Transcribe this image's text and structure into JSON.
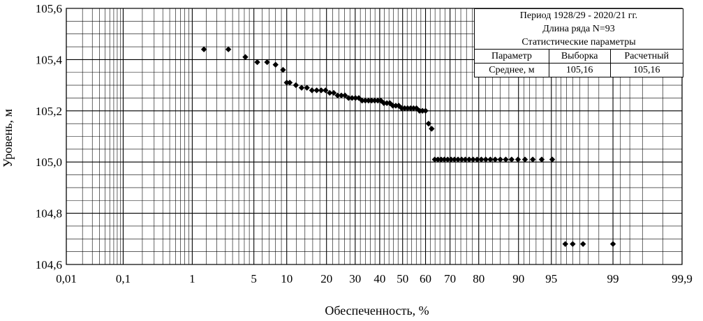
{
  "chart_data": {
    "type": "scatter",
    "title": "",
    "xlabel": "Обеспеченность, %",
    "ylabel": "Уровень, м",
    "x_scale": "probability",
    "ylim": [
      104.6,
      105.6
    ],
    "grid": true,
    "x_ticks": [
      {
        "value": 0.01,
        "label": "0,01"
      },
      {
        "value": 0.1,
        "label": "0,1"
      },
      {
        "value": 1,
        "label": "1"
      },
      {
        "value": 5,
        "label": "5"
      },
      {
        "value": 10,
        "label": "10"
      },
      {
        "value": 20,
        "label": "20"
      },
      {
        "value": 30,
        "label": "30"
      },
      {
        "value": 40,
        "label": "40"
      },
      {
        "value": 50,
        "label": "50"
      },
      {
        "value": 60,
        "label": "60"
      },
      {
        "value": 70,
        "label": "70"
      },
      {
        "value": 80,
        "label": "80"
      },
      {
        "value": 90,
        "label": "90"
      },
      {
        "value": 95,
        "label": "95"
      },
      {
        "value": 99,
        "label": "99"
      },
      {
        "value": 99.9,
        "label": "99,9"
      }
    ],
    "y_ticks": [
      {
        "value": 104.6,
        "label": "104,6"
      },
      {
        "value": 104.8,
        "label": "104,8"
      },
      {
        "value": 105.0,
        "label": "105,0"
      },
      {
        "value": 105.2,
        "label": "105,2"
      },
      {
        "value": 105.4,
        "label": "105,4"
      },
      {
        "value": 105.6,
        "label": "105,6"
      }
    ],
    "x": [
      1.4,
      2.7,
      4.1,
      5.4,
      6.7,
      8.0,
      9.3,
      10.0,
      10.6,
      11.9,
      13.2,
      14.5,
      15.8,
      17.1,
      18.4,
      19.7,
      21.0,
      22.3,
      23.6,
      24.9,
      26.2,
      27.5,
      28.8,
      30.1,
      31.4,
      32.7,
      34.0,
      35.3,
      36.6,
      37.9,
      39.2,
      40.5,
      41.8,
      43.1,
      44.4,
      45.7,
      47.0,
      48.3,
      49.6,
      50.9,
      52.2,
      53.5,
      54.8,
      56.1,
      57.4,
      58.7,
      60.0,
      61.3,
      62.6,
      63.9,
      65.2,
      66.5,
      67.8,
      69.1,
      70.4,
      71.7,
      73.0,
      74.3,
      75.6,
      76.9,
      78.2,
      79.5,
      80.8,
      82.1,
      83.4,
      84.7,
      86.0,
      87.3,
      88.6,
      89.9,
      91.2,
      92.5,
      93.8,
      95.1,
      96.4,
      97.0,
      97.7,
      99.0
    ],
    "y": [
      105.44,
      105.44,
      105.41,
      105.39,
      105.39,
      105.38,
      105.36,
      105.31,
      105.31,
      105.3,
      105.29,
      105.29,
      105.28,
      105.28,
      105.28,
      105.28,
      105.27,
      105.27,
      105.26,
      105.26,
      105.26,
      105.25,
      105.25,
      105.25,
      105.25,
      105.24,
      105.24,
      105.24,
      105.24,
      105.24,
      105.24,
      105.24,
      105.23,
      105.23,
      105.23,
      105.22,
      105.22,
      105.22,
      105.21,
      105.21,
      105.21,
      105.21,
      105.21,
      105.21,
      105.2,
      105.2,
      105.2,
      105.15,
      105.13,
      105.01,
      105.01,
      105.01,
      105.01,
      105.01,
      105.01,
      105.01,
      105.01,
      105.01,
      105.01,
      105.01,
      105.01,
      105.01,
      105.01,
      105.01,
      105.01,
      105.01,
      105.01,
      105.01,
      105.01,
      105.01,
      105.01,
      105.01,
      105.01,
      105.01,
      104.68,
      104.68,
      104.68,
      104.68
    ]
  },
  "stats_box": {
    "line1": "Период 1928/29 - 2020/21 гг.",
    "line2": "Длина ряда N=93",
    "line3": "Статистические параметры",
    "headers": [
      "Параметр",
      "Выборка",
      "Расчетный"
    ],
    "rows": [
      {
        "param": "Среднее, м",
        "sample": "105,16",
        "calc": "105,16"
      }
    ]
  }
}
